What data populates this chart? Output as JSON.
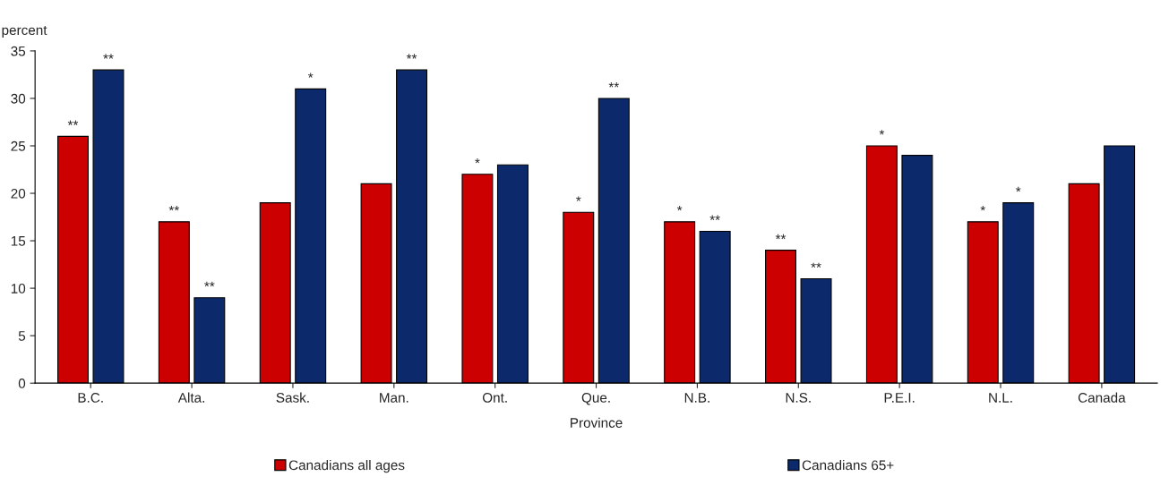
{
  "chart_data": {
    "type": "bar",
    "ylabel": "percent",
    "xlabel": "Province",
    "categories": [
      "B.C.",
      "Alta.",
      "Sask.",
      "Man.",
      "Ont.",
      "Que.",
      "N.B.",
      "N.S.",
      "P.E.I.",
      "N.L.",
      "Canada"
    ],
    "series": [
      {
        "name": "Canadians all ages",
        "color": "#cc0000",
        "values": [
          26,
          17,
          19,
          21,
          22,
          18,
          17,
          14,
          25,
          17,
          21
        ],
        "value_labels": [
          "**",
          "**",
          null,
          null,
          "*",
          "*",
          "*",
          "**",
          "*",
          "*",
          null
        ]
      },
      {
        "name": "Canadians 65+",
        "color": "#0c2a6b",
        "values": [
          33,
          9,
          31,
          33,
          23,
          30,
          16,
          11,
          24,
          19,
          25
        ],
        "value_labels": [
          "**",
          "**",
          "*",
          "**",
          null,
          "**",
          "**",
          "**",
          null,
          "*",
          null
        ]
      }
    ],
    "ylim": [
      0,
      35
    ],
    "yticks": [
      0,
      5,
      10,
      15,
      20,
      25,
      30,
      35
    ],
    "grid": false,
    "legend": "bottom"
  }
}
